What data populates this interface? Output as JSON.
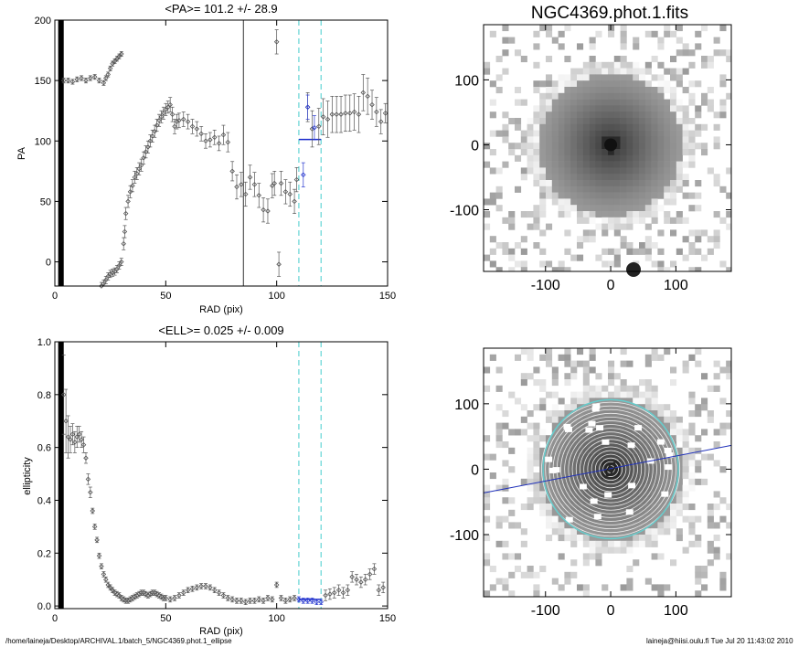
{
  "footer": {
    "path": "/home/laineja/Desktop/ARCHIVAL.1/batch_5/NGC4369.phot.1_ellipse",
    "user_time": "laineja@hiisi.oulu.fi  Tue Jul 20 11:43:02 2010"
  },
  "chart_data": [
    {
      "id": "pa",
      "type": "scatter",
      "title": "<PA>= 101.2 +/-  28.9",
      "xlabel": "RAD (pix)",
      "ylabel": "PA",
      "xlim": [
        0,
        150
      ],
      "ylim": [
        -20,
        200
      ],
      "xticks": [
        0,
        50,
        100,
        150
      ],
      "yticks": [
        0,
        50,
        100,
        150,
        200
      ],
      "vlines": [
        {
          "x": 85,
          "style": "solid",
          "color": "#333333"
        },
        {
          "x": 110,
          "style": "dashed",
          "color": "#44cccc"
        },
        {
          "x": 120,
          "style": "dashed",
          "color": "#44cccc"
        }
      ],
      "mean_segment": {
        "x0": 110,
        "x1": 120,
        "y": 101.2,
        "color": "#1a2acc"
      },
      "series": [
        {
          "name": "PA black",
          "color": "#555555",
          "x": [
            4,
            6,
            8,
            10,
            12,
            14,
            16,
            18,
            20,
            22,
            23,
            24,
            25,
            26,
            27,
            28,
            29,
            30,
            21,
            22,
            23,
            24,
            25,
            26,
            27,
            28,
            29,
            30,
            31,
            31.5,
            32,
            33,
            34,
            35,
            36,
            37,
            38,
            39,
            40,
            41,
            42,
            43,
            44,
            45,
            46,
            47,
            48,
            49,
            50,
            51,
            52,
            53,
            54,
            55,
            56,
            58,
            60,
            62,
            64,
            66,
            68,
            70,
            72,
            74,
            76,
            78,
            80,
            82,
            84,
            86,
            88,
            90,
            92,
            94,
            96,
            98,
            99,
            100,
            101,
            102,
            104,
            106,
            108,
            109,
            114,
            116,
            119,
            121,
            123,
            125,
            127,
            129,
            131,
            133,
            135,
            137,
            139,
            141,
            143,
            145,
            147,
            149
          ],
          "y": [
            150,
            150,
            149,
            151,
            152,
            150,
            152,
            153,
            150,
            148,
            152,
            155,
            160,
            164,
            166,
            168,
            170,
            172,
            -20,
            -18,
            -15,
            -12,
            -10,
            -9,
            -8,
            -6,
            -3,
            0,
            15,
            25,
            40,
            50,
            58,
            63,
            70,
            73,
            77,
            80,
            86,
            91,
            95,
            100,
            104,
            108,
            113,
            117,
            120,
            123,
            126,
            128,
            130,
            122,
            112,
            116,
            117,
            118,
            116,
            112,
            110,
            106,
            100,
            101,
            103,
            98,
            105,
            99,
            75,
            62,
            64,
            56,
            70,
            64,
            55,
            43,
            42,
            63,
            65,
            182,
            -2,
            65,
            58,
            56,
            50,
            68,
            128,
            110,
            112,
            120,
            118,
            122,
            122,
            122,
            123,
            123,
            124,
            122,
            140,
            137,
            130,
            124,
            116,
            123
          ],
          "err": [
            2,
            2,
            2,
            2,
            2,
            2,
            2,
            2,
            2,
            2,
            2,
            2,
            2,
            2,
            2,
            2,
            2,
            2,
            3,
            3,
            3,
            3,
            3,
            3,
            3,
            3,
            3,
            3,
            5,
            5,
            5,
            5,
            5,
            5,
            5,
            5,
            5,
            5,
            5,
            5,
            5,
            5,
            5,
            5,
            5,
            5,
            5,
            5,
            5,
            5,
            6,
            6,
            6,
            6,
            6,
            6,
            6,
            6,
            6,
            6,
            6,
            6,
            6,
            6,
            8,
            8,
            8,
            10,
            10,
            10,
            10,
            10,
            10,
            10,
            10,
            10,
            10,
            10,
            10,
            10,
            10,
            10,
            10,
            10,
            12,
            15,
            15,
            15,
            15,
            15,
            15,
            15,
            15,
            15,
            15,
            15,
            15,
            15,
            12,
            12,
            10,
            8
          ]
        },
        {
          "name": "PA blue",
          "color": "#2a3ad0",
          "x": [
            112,
            114,
            117
          ],
          "y": [
            72,
            128,
            111
          ],
          "err": [
            10,
            10,
            10
          ]
        }
      ]
    },
    {
      "id": "ell",
      "type": "scatter",
      "title": "<ELL>= 0.025 +/-  0.009",
      "xlabel": "RAD (pix)",
      "ylabel": "ellipticity",
      "xlim": [
        0,
        150
      ],
      "ylim": [
        -0.01,
        1.0
      ],
      "xticks": [
        0,
        50,
        100,
        150
      ],
      "yticks": [
        0.0,
        0.2,
        0.4,
        0.6,
        0.8,
        1.0
      ],
      "yticklabels": [
        "0.0",
        "0.2",
        "0.4",
        "0.6",
        "0.8",
        "1.0"
      ],
      "vlines": [
        {
          "x": 110,
          "style": "dashed",
          "color": "#44cccc"
        },
        {
          "x": 120,
          "style": "dashed",
          "color": "#44cccc"
        }
      ],
      "mean_segment": {
        "x0": 110,
        "x1": 120,
        "y": 0.025,
        "color": "#1a2acc"
      },
      "series": [
        {
          "name": "ELL black",
          "color": "#555555",
          "x": [
            4,
            5,
            6,
            7,
            8,
            9,
            10,
            11,
            12,
            13,
            14,
            15,
            16,
            17,
            18,
            19,
            20,
            21,
            22,
            23,
            24,
            25,
            26,
            27,
            28,
            29,
            30,
            31,
            32,
            33,
            34,
            35,
            36,
            37,
            38,
            39,
            40,
            41,
            42,
            43,
            44,
            45,
            46,
            47,
            48,
            49,
            50,
            52,
            54,
            56,
            58,
            60,
            62,
            64,
            66,
            68,
            70,
            72,
            74,
            76,
            78,
            80,
            82,
            84,
            86,
            88,
            90,
            92,
            94,
            96,
            98,
            100,
            102,
            104,
            106,
            108,
            122,
            124,
            126,
            128,
            130,
            132,
            134,
            136,
            138,
            140,
            142,
            144,
            146,
            148
          ],
          "y": [
            0.8,
            0.7,
            0.64,
            0.63,
            0.65,
            0.62,
            0.64,
            0.65,
            0.63,
            0.61,
            0.56,
            0.48,
            0.43,
            0.36,
            0.3,
            0.25,
            0.19,
            0.15,
            0.12,
            0.1,
            0.08,
            0.07,
            0.06,
            0.05,
            0.045,
            0.04,
            0.03,
            0.025,
            0.02,
            0.02,
            0.025,
            0.03,
            0.035,
            0.04,
            0.045,
            0.05,
            0.05,
            0.045,
            0.04,
            0.045,
            0.05,
            0.05,
            0.045,
            0.04,
            0.035,
            0.03,
            0.03,
            0.025,
            0.03,
            0.04,
            0.05,
            0.06,
            0.065,
            0.07,
            0.075,
            0.075,
            0.07,
            0.06,
            0.05,
            0.04,
            0.03,
            0.025,
            0.02,
            0.02,
            0.015,
            0.02,
            0.02,
            0.025,
            0.02,
            0.03,
            0.025,
            0.08,
            0.03,
            0.02,
            0.025,
            0.03,
            0.04,
            0.045,
            0.05,
            0.06,
            0.05,
            0.06,
            0.11,
            0.1,
            0.09,
            0.1,
            0.12,
            0.14,
            0.06,
            0.07
          ],
          "err": [
            0.15,
            0.12,
            0.08,
            0.05,
            0.04,
            0.04,
            0.04,
            0.03,
            0.03,
            0.03,
            0.02,
            0.02,
            0.02,
            0.01,
            0.01,
            0.01,
            0.01,
            0.01,
            0.01,
            0.01,
            0.01,
            0.01,
            0.01,
            0.01,
            0.01,
            0.01,
            0.01,
            0.01,
            0.01,
            0.01,
            0.01,
            0.01,
            0.01,
            0.01,
            0.01,
            0.01,
            0.01,
            0.01,
            0.01,
            0.01,
            0.01,
            0.01,
            0.01,
            0.01,
            0.01,
            0.01,
            0.01,
            0.01,
            0.01,
            0.01,
            0.01,
            0.01,
            0.01,
            0.01,
            0.01,
            0.01,
            0.01,
            0.01,
            0.01,
            0.01,
            0.01,
            0.01,
            0.01,
            0.01,
            0.01,
            0.01,
            0.01,
            0.01,
            0.01,
            0.01,
            0.01,
            0.01,
            0.01,
            0.01,
            0.01,
            0.01,
            0.02,
            0.02,
            0.02,
            0.02,
            0.02,
            0.02,
            0.02,
            0.02,
            0.02,
            0.02,
            0.02,
            0.02,
            0.02,
            0.02
          ]
        },
        {
          "name": "ELL blue",
          "color": "#2a3ad0",
          "x": [
            110,
            112,
            114,
            116,
            118,
            120
          ],
          "y": [
            0.025,
            0.02,
            0.02,
            0.02,
            0.015,
            0.015
          ],
          "err": [
            0.01,
            0.01,
            0.01,
            0.01,
            0.01,
            0.01
          ]
        }
      ]
    },
    {
      "id": "img1",
      "type": "heatmap",
      "title": "NGC4369.phot.1.fits",
      "xlim": [
        -195,
        185
      ],
      "ylim": [
        -195,
        185
      ],
      "xticks": [
        -100,
        0,
        100
      ],
      "yticks": [
        -100,
        0,
        100
      ],
      "description": "galaxy image"
    },
    {
      "id": "img2",
      "type": "heatmap",
      "title": "",
      "xlim": [
        -195,
        185
      ],
      "ylim": [
        -195,
        185
      ],
      "xticks": [
        -100,
        0,
        100
      ],
      "yticks": [
        -100,
        0,
        100
      ],
      "overlay": {
        "ellipse_color": "#66cccc",
        "axis_line_color": "#2233bb"
      }
    }
  ]
}
